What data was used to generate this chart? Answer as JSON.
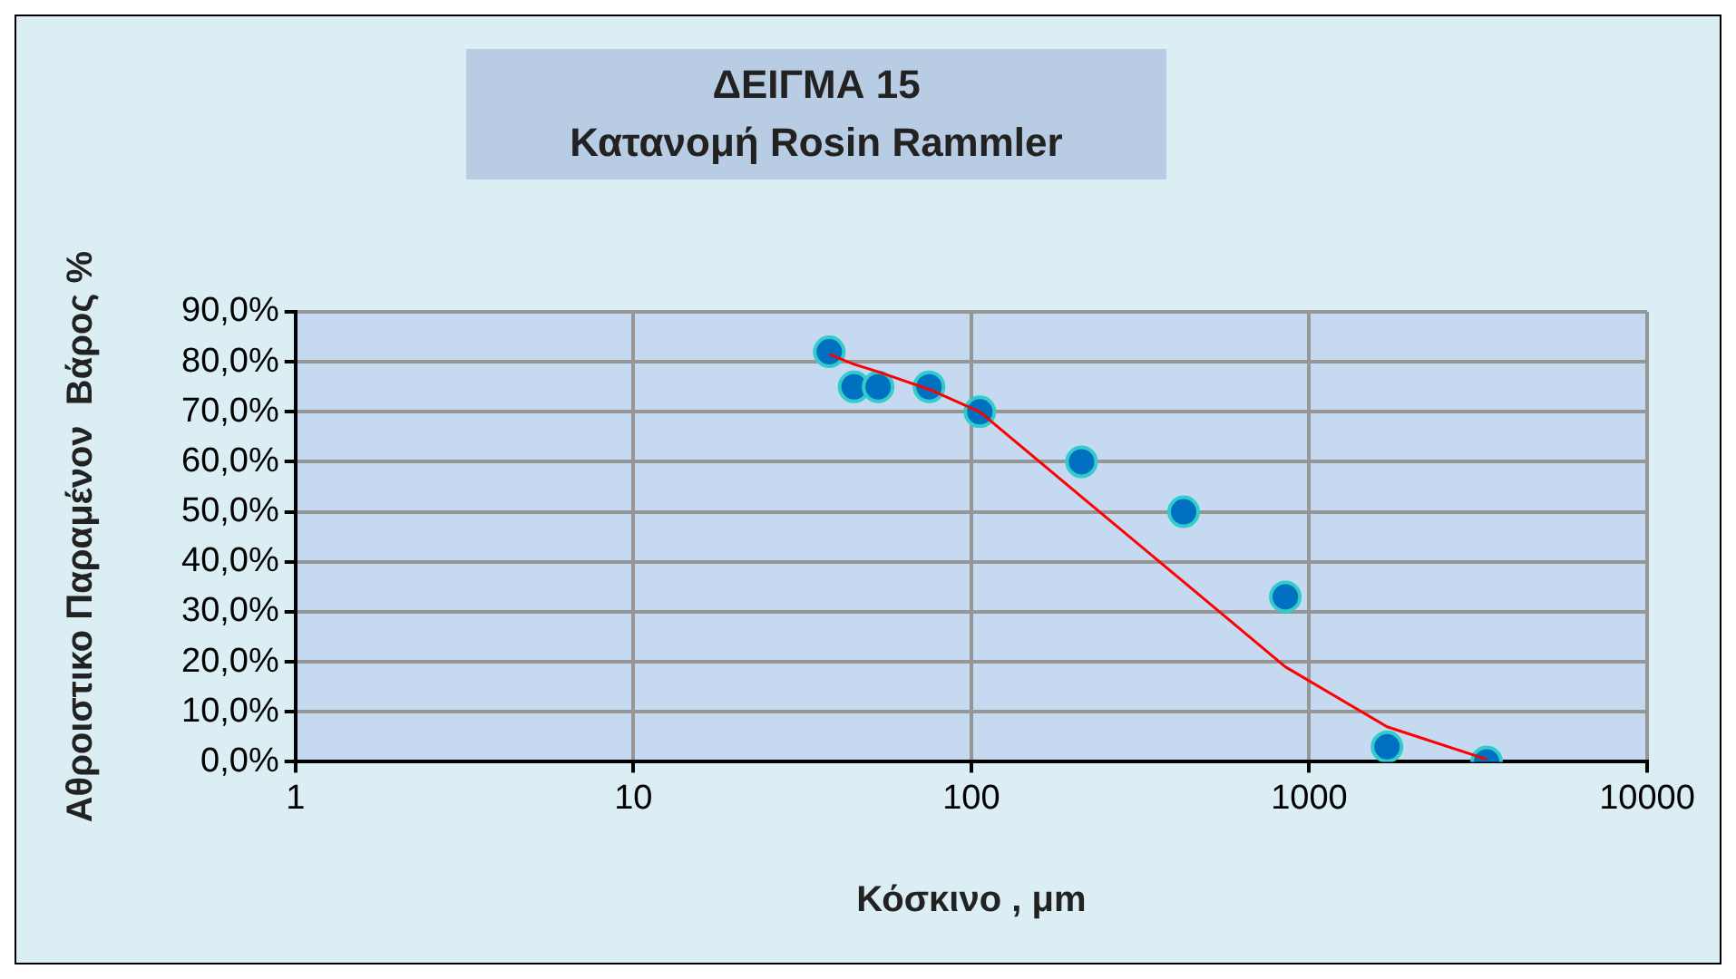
{
  "chart_data": {
    "type": "scatter",
    "title": "ΔΕΙΓΜΑ 15\nΚατανομή Rosin Rammler",
    "xlabel": "Κόσκινο , μm",
    "ylabel": "Αθροιστικο Παραμένον  Βάρος %",
    "log": "x",
    "grid": true,
    "legend": false,
    "marker": "circle",
    "xlim": [
      1,
      10000
    ],
    "xticks": [
      1,
      10,
      100,
      1000,
      10000
    ],
    "ylim": [
      0,
      90
    ],
    "yticks": [
      {
        "value": 0,
        "label": "0,0%"
      },
      {
        "value": 10,
        "label": "10,0%"
      },
      {
        "value": 20,
        "label": "20,0%"
      },
      {
        "value": 30,
        "label": "30,0%"
      },
      {
        "value": 40,
        "label": "40,0%"
      },
      {
        "value": 50,
        "label": "50,0%"
      },
      {
        "value": 60,
        "label": "60,0%"
      },
      {
        "value": 70,
        "label": "70,0%"
      },
      {
        "value": 80,
        "label": "80,0%"
      },
      {
        "value": 90,
        "label": "90,0%"
      }
    ],
    "series": [
      {
        "color": "#0070c0",
        "x": [
          38,
          45,
          53,
          75,
          106,
          212,
          425,
          850,
          1700,
          3350
        ],
        "values": [
          82,
          75,
          75,
          75,
          70,
          60,
          50,
          33,
          3,
          0
        ]
      },
      {
        "type": "line",
        "color": "#ff0000",
        "marker": "none",
        "x": [
          38,
          45,
          53,
          75,
          106,
          212,
          425,
          850,
          1700,
          3350
        ],
        "values": [
          81.5,
          79.5,
          78,
          74.5,
          70,
          53,
          36,
          19,
          7,
          0.5
        ]
      }
    ]
  }
}
